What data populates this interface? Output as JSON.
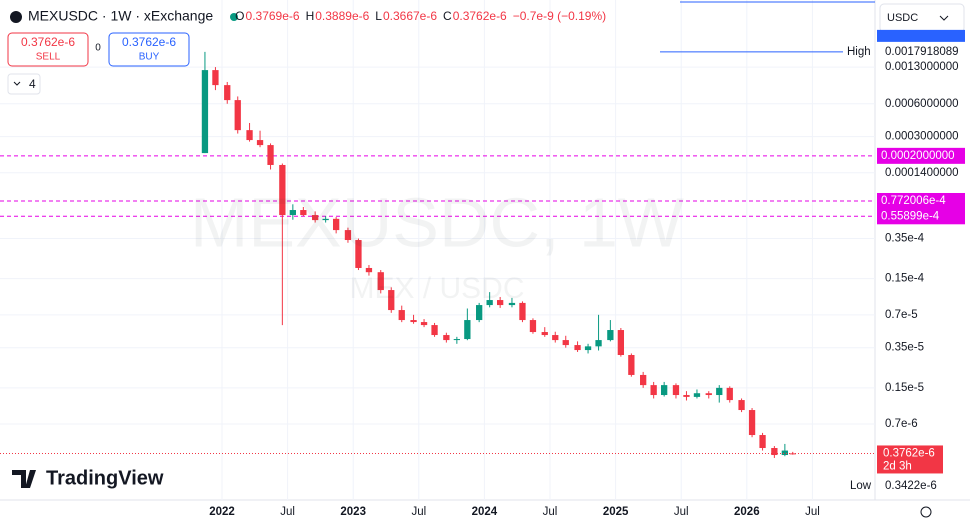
{
  "header": {
    "symbol": "MEXUSDC · 1W · xExchange",
    "ohlc": [
      {
        "key": "O",
        "value": "0.3769e-6"
      },
      {
        "key": "H",
        "value": "0.3889e-6"
      },
      {
        "key": "L",
        "value": "0.3667e-6"
      },
      {
        "key": "C",
        "value": "0.3762e-6"
      }
    ],
    "change": "−0.7e-9 (−0.19%)"
  },
  "trade": {
    "sell_price": "0.3762e-6",
    "sell": "SELL",
    "spread": "0",
    "buy_price": "0.3762e-6",
    "buy": "BUY"
  },
  "indicators_count": "4",
  "currency": "USDC",
  "watermark": "MEXUSDC, 1W",
  "watermark_pair": "MEX / USDC",
  "logo": "TradingView",
  "chart_data": {
    "type": "candlestick",
    "x": [
      2021.87,
      2021.95,
      2022.04,
      2022.12,
      2022.21,
      2022.29,
      2022.37,
      2022.46,
      2022.54,
      2022.62,
      2022.71,
      2022.79,
      2022.87,
      2022.96,
      2023.04,
      2023.12,
      2023.21,
      2023.29,
      2023.37,
      2023.46,
      2023.54,
      2023.62,
      2023.71,
      2023.79,
      2023.87,
      2023.96,
      2024.04,
      2024.12,
      2024.21,
      2024.29,
      2024.37,
      2024.46,
      2024.54,
      2024.62,
      2024.71,
      2024.79,
      2024.87,
      2024.96,
      2025.04,
      2025.12,
      2025.21,
      2025.29,
      2025.37,
      2025.46,
      2025.54,
      2025.62,
      2025.71,
      2025.79,
      2025.87,
      2025.96,
      2026.04,
      2026.12,
      2026.21,
      2026.29,
      2026.35
    ],
    "open": [
      0.000212,
      0.00122,
      0.000889,
      0.000648,
      0.000344,
      0.000279,
      0.000251,
      0.000165,
      5.74e-05,
      6.38e-05,
      5.74e-05,
      5.16e-05,
      5.3e-05,
      4.18e-05,
      3.39e-05,
      1.88e-05,
      1.72e-05,
      1.18e-05,
      7.74e-06,
      6.27e-06,
      6.01e-06,
      5.64e-06,
      4.57e-06,
      4.11e-06,
      4.2e-06,
      6.27e-06,
      8.6e-06,
      9.56e-06,
      8.6e-06,
      9e-06,
      6.27e-06,
      4.87e-06,
      4.57e-06,
      4.11e-06,
      3.7e-06,
      3.33e-06,
      3.6e-06,
      4.11e-06,
      5.08e-06,
      3e-06,
      1.97e-06,
      1.59e-06,
      1.29e-06,
      1.59e-06,
      1.29e-06,
      1.24e-06,
      1.34e-06,
      1.29e-06,
      1.5e-06,
      1.16e-06,
      9.4e-07,
      5.55e-07,
      4.22e-07,
      3.64e-07,
      3.769e-07
    ],
    "high": [
      0.0017918089,
      0.0013,
      0.00095,
      0.0007,
      0.0004,
      0.00034,
      0.00026,
      0.00017,
      7.2e-05,
      6.8e-05,
      6.2e-05,
      5.6e-05,
      5.5e-05,
      4.4e-05,
      3.5e-05,
      2e-05,
      1.8e-05,
      1.25e-05,
      8.5e-06,
      7e-06,
      6.4e-06,
      5.9e-06,
      4.8e-06,
      4.4e-06,
      8e-06,
      9e-06,
      1.13e-05,
      1.02e-05,
      1e-05,
      9.3e-06,
      6.5e-06,
      5.4e-06,
      4.9e-06,
      4.5e-06,
      4e-06,
      3.8e-06,
      7e-06,
      6.27e-06,
      5.3e-06,
      3.1e-06,
      2.1e-06,
      1.7e-06,
      1.7e-06,
      1.65e-06,
      1.4e-06,
      1.45e-06,
      1.4e-06,
      1.59e-06,
      1.55e-06,
      1.2e-06,
      9.8e-07,
      5.8e-07,
      4.4e-07,
      4.6e-07,
      3.889e-07
    ],
    "low": [
      0.000212,
      0.0008,
      0.0006,
      0.00032,
      0.00027,
      0.00024,
      0.00015,
      5.64e-06,
      5.2e-05,
      5.6e-05,
      4.9e-05,
      4.9e-05,
      3.9e-05,
      3.2e-05,
      1.8e-05,
      1.6e-05,
      1.1e-05,
      7.3e-06,
      6e-06,
      5.8e-06,
      5.4e-06,
      4.4e-06,
      3.9e-06,
      3.8e-06,
      4.1e-06,
      6e-06,
      8.2e-06,
      8.1e-06,
      8.2e-06,
      6e-06,
      4.7e-06,
      4.4e-06,
      3.9e-06,
      3.5e-06,
      3.2e-06,
      3.1e-06,
      3.3e-06,
      4e-06,
      2.9e-06,
      1.9e-06,
      1.5e-06,
      1.2e-06,
      1.25e-06,
      1.2e-06,
      1.15e-06,
      1.2e-06,
      1.2e-06,
      1.1e-06,
      1.1e-06,
      9e-07,
      5.3e-07,
      4e-07,
      3.422e-07,
      3.55e-07,
      3.667e-07
    ],
    "close": [
      0.00122,
      0.000889,
      0.000648,
      0.000344,
      0.000279,
      0.000251,
      0.000165,
      5.74e-05,
      6.38e-05,
      5.74e-05,
      5.16e-05,
      5.3e-05,
      4.18e-05,
      3.39e-05,
      1.88e-05,
      1.72e-05,
      1.18e-05,
      7.74e-06,
      6.27e-06,
      6.01e-06,
      5.64e-06,
      4.57e-06,
      4.11e-06,
      4.2e-06,
      6.27e-06,
      8.6e-06,
      9.56e-06,
      8.6e-06,
      9e-06,
      6.27e-06,
      4.87e-06,
      4.57e-06,
      4.11e-06,
      3.7e-06,
      3.33e-06,
      3.6e-06,
      4.11e-06,
      5.08e-06,
      3e-06,
      1.97e-06,
      1.59e-06,
      1.29e-06,
      1.59e-06,
      1.29e-06,
      1.24e-06,
      1.34e-06,
      1.29e-06,
      1.5e-06,
      1.16e-06,
      9.4e-07,
      5.55e-07,
      4.22e-07,
      3.64e-07,
      4e-07,
      3.762e-07
    ],
    "up_color": "#089981",
    "down_color": "#f23645",
    "log_scale": true,
    "grid": true,
    "ylim": [
      1.41e-07,
      0.00535
    ],
    "yticks": [
      {
        "value": 0.0013,
        "label": "0.0013000000"
      },
      {
        "value": 0.0006,
        "label": "0.0006000000"
      },
      {
        "value": 0.0003,
        "label": "0.0003000000"
      },
      {
        "value": 0.00014,
        "label": "0.0001400000"
      },
      {
        "value": 3.5e-05,
        "label": "0.35e-4"
      },
      {
        "value": 1.5e-05,
        "label": "0.15e-4"
      },
      {
        "value": 7e-06,
        "label": "0.7e-5"
      },
      {
        "value": 3.5e-06,
        "label": "0.35e-5"
      },
      {
        "value": 1.5e-06,
        "label": "0.15e-5"
      },
      {
        "value": 7e-07,
        "label": "0.7e-6"
      }
    ],
    "xlim": [
      2020.308,
      2026.977
    ],
    "xticks": [
      2022,
      {
        "value": 2022.5,
        "label": "Jul"
      },
      2023,
      {
        "value": 2023.5,
        "label": "Jul"
      },
      2024,
      {
        "value": 2024.5,
        "label": "Jul"
      },
      2025,
      {
        "value": 2025.5,
        "label": "Jul"
      },
      2026,
      {
        "value": 2026.5,
        "label": "Jul"
      }
    ],
    "price_lines": [
      {
        "value": 0.0002,
        "label": "0.0002000000"
      },
      {
        "value": 7.72006e-05,
        "label": "0.772006e-4"
      },
      {
        "value": 5.5899e-05,
        "label": "0.55899e-4"
      }
    ],
    "price_line_color": "#e600e6",
    "high_marker": {
      "text": "High",
      "value": 0.0017918089,
      "label": "0.0017918089"
    },
    "low_marker": {
      "text": "Low",
      "value": 3.422e-07,
      "label": "0.3422e-6"
    },
    "last_price": {
      "label": "0.3762e-6",
      "countdown": "2d 3h"
    }
  }
}
